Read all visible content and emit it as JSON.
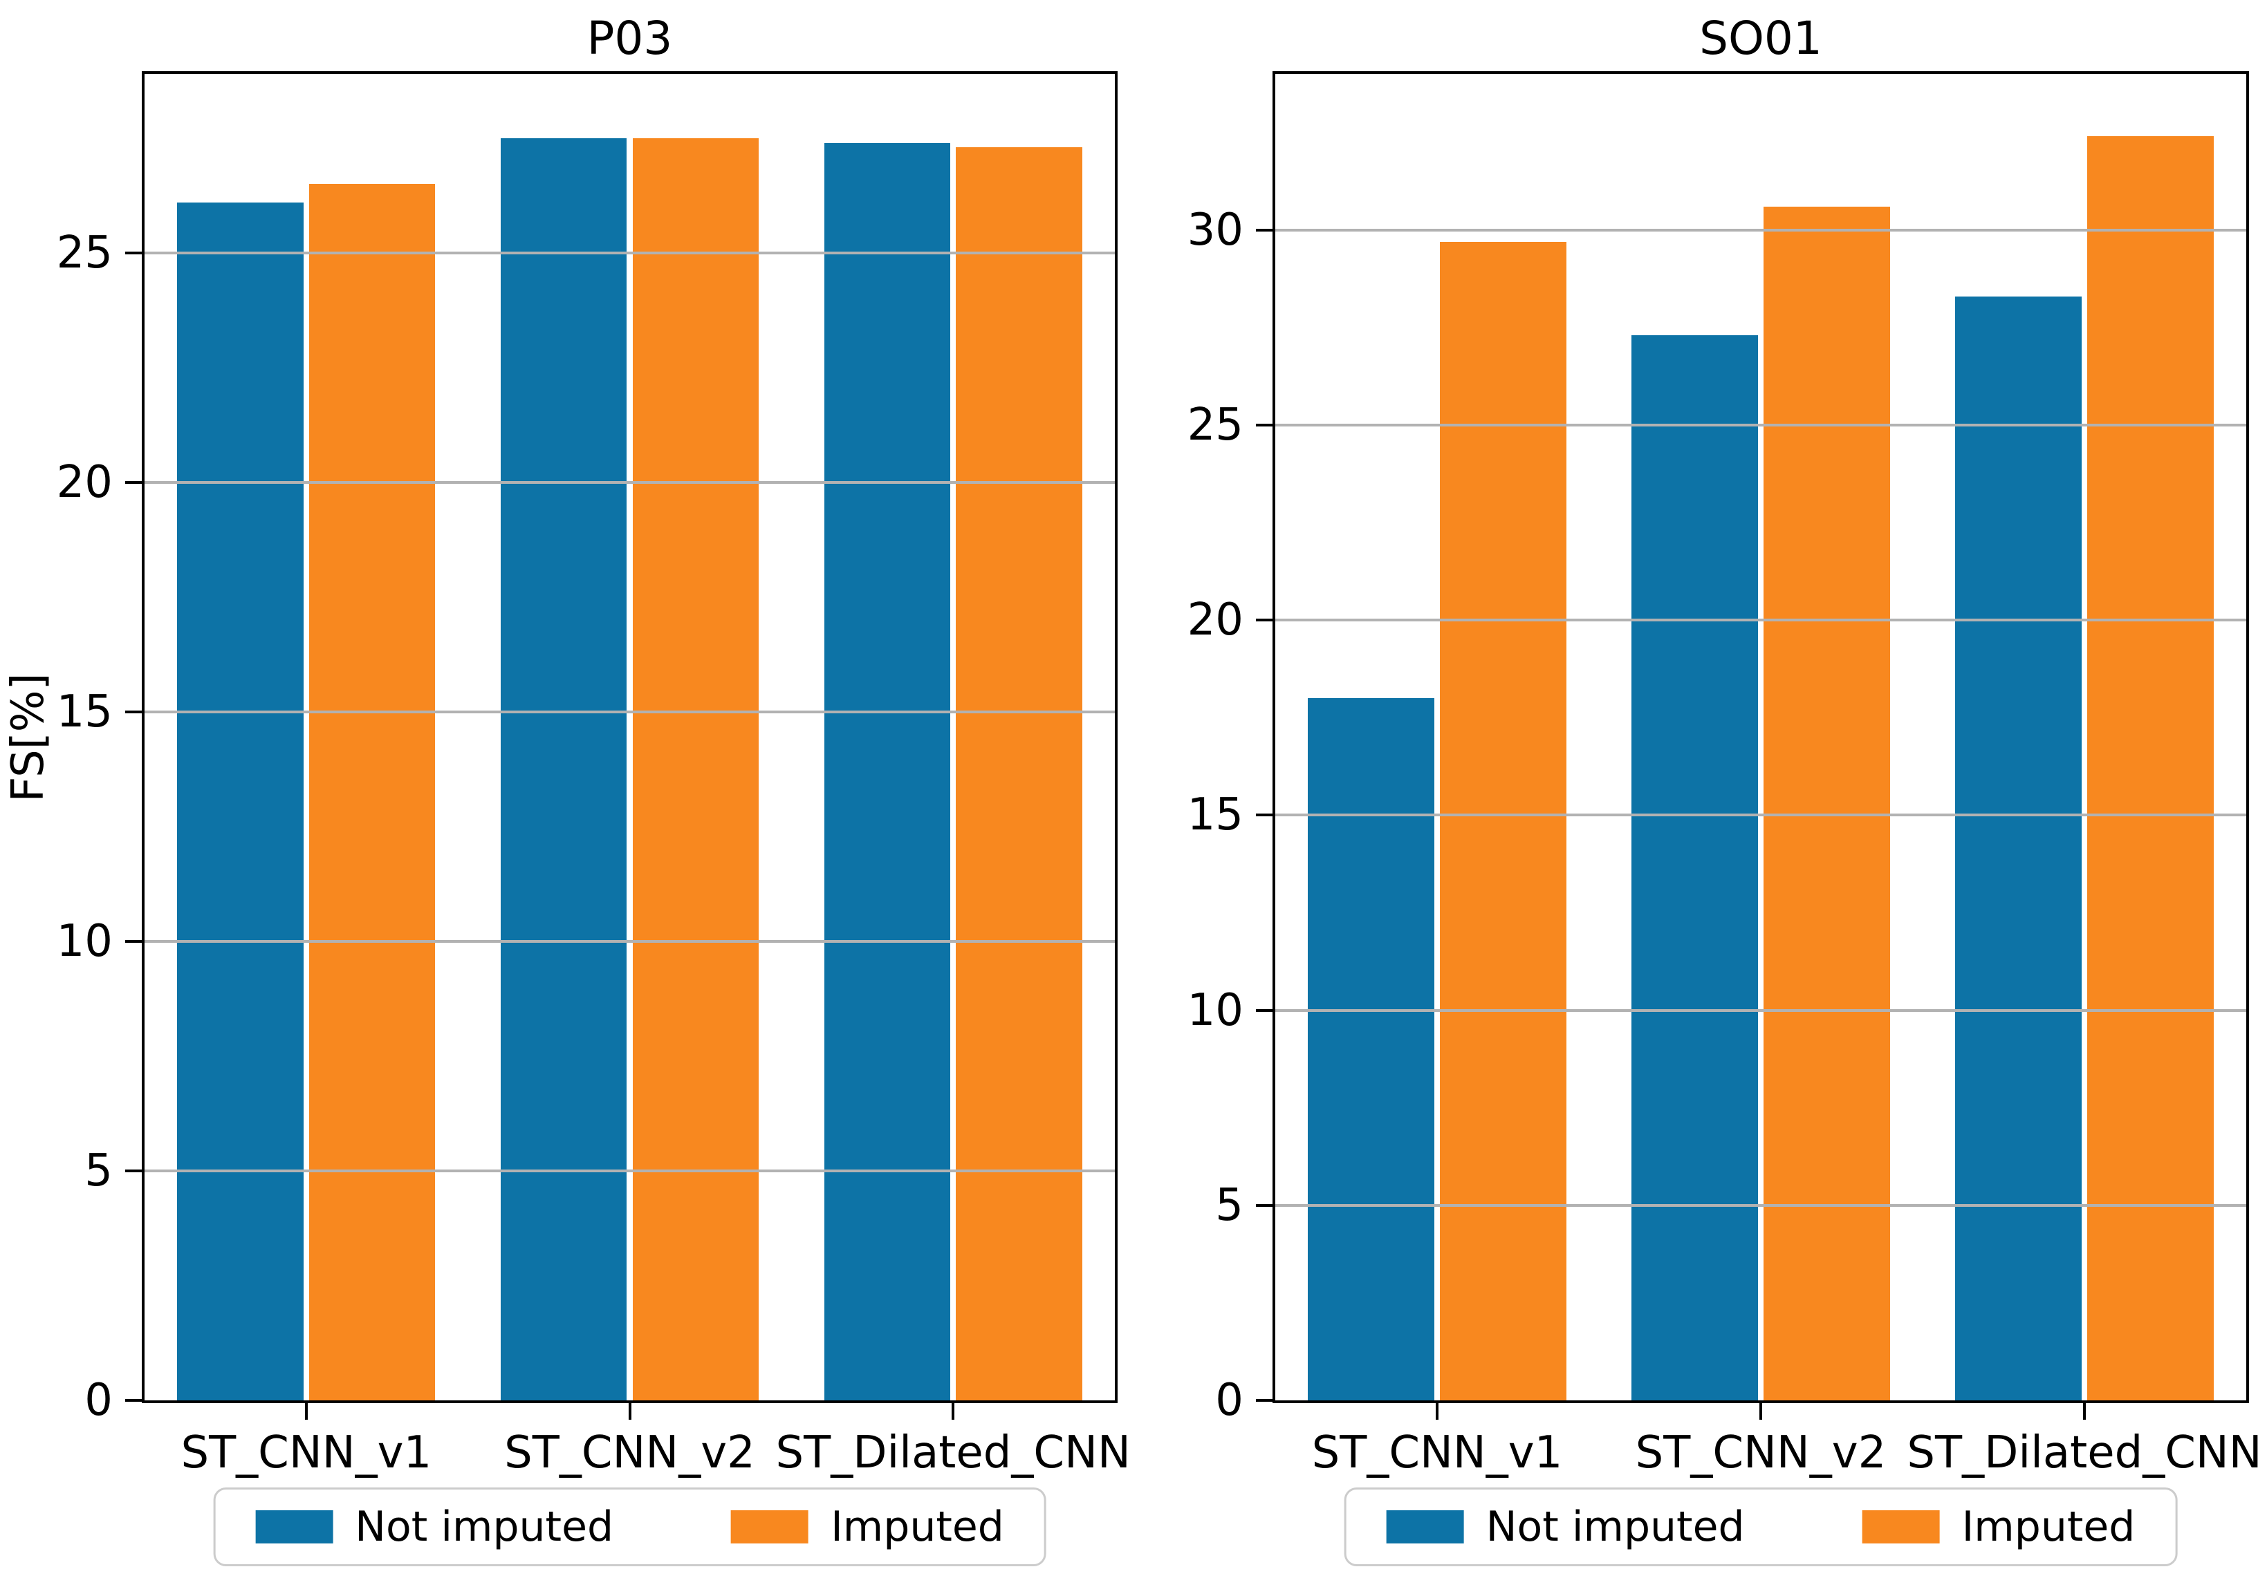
{
  "figure": {
    "background": "#ffffff"
  },
  "colors": {
    "not_imputed": "#0d73a6",
    "imputed": "#f8881f",
    "grid": "#b2b2b2",
    "spine": "#000000"
  },
  "legend": {
    "items": [
      {
        "label": "Not imputed",
        "color_key": "not_imputed"
      },
      {
        "label": "Imputed",
        "color_key": "imputed"
      }
    ]
  },
  "chart_data": [
    {
      "type": "bar",
      "title": "P03",
      "xlabel": "",
      "ylabel": "FS[%]",
      "categories": [
        "ST_CNN_v1",
        "ST_CNN_v2",
        "ST_Dilated_CNN"
      ],
      "series": [
        {
          "name": "Not imputed",
          "color_key": "not_imputed",
          "values": [
            26.1,
            27.5,
            27.4
          ]
        },
        {
          "name": "Imputed",
          "color_key": "imputed",
          "values": [
            26.5,
            27.5,
            27.3
          ]
        }
      ],
      "ylim": [
        0,
        28.9
      ],
      "yticks": [
        0,
        5,
        10,
        15,
        20,
        25
      ],
      "grid": true,
      "legend_position": "below"
    },
    {
      "type": "bar",
      "title": "SO01",
      "xlabel": "",
      "ylabel": "",
      "categories": [
        "ST_CNN_v1",
        "ST_CNN_v2",
        "ST_Dilated_CNN"
      ],
      "series": [
        {
          "name": "Not imputed",
          "color_key": "not_imputed",
          "values": [
            18.0,
            27.3,
            28.3
          ]
        },
        {
          "name": "Imputed",
          "color_key": "imputed",
          "values": [
            29.7,
            30.6,
            32.4
          ]
        }
      ],
      "ylim": [
        0,
        34.0
      ],
      "yticks": [
        0,
        5,
        10,
        15,
        20,
        25,
        30
      ],
      "grid": true,
      "legend_position": "below"
    }
  ]
}
